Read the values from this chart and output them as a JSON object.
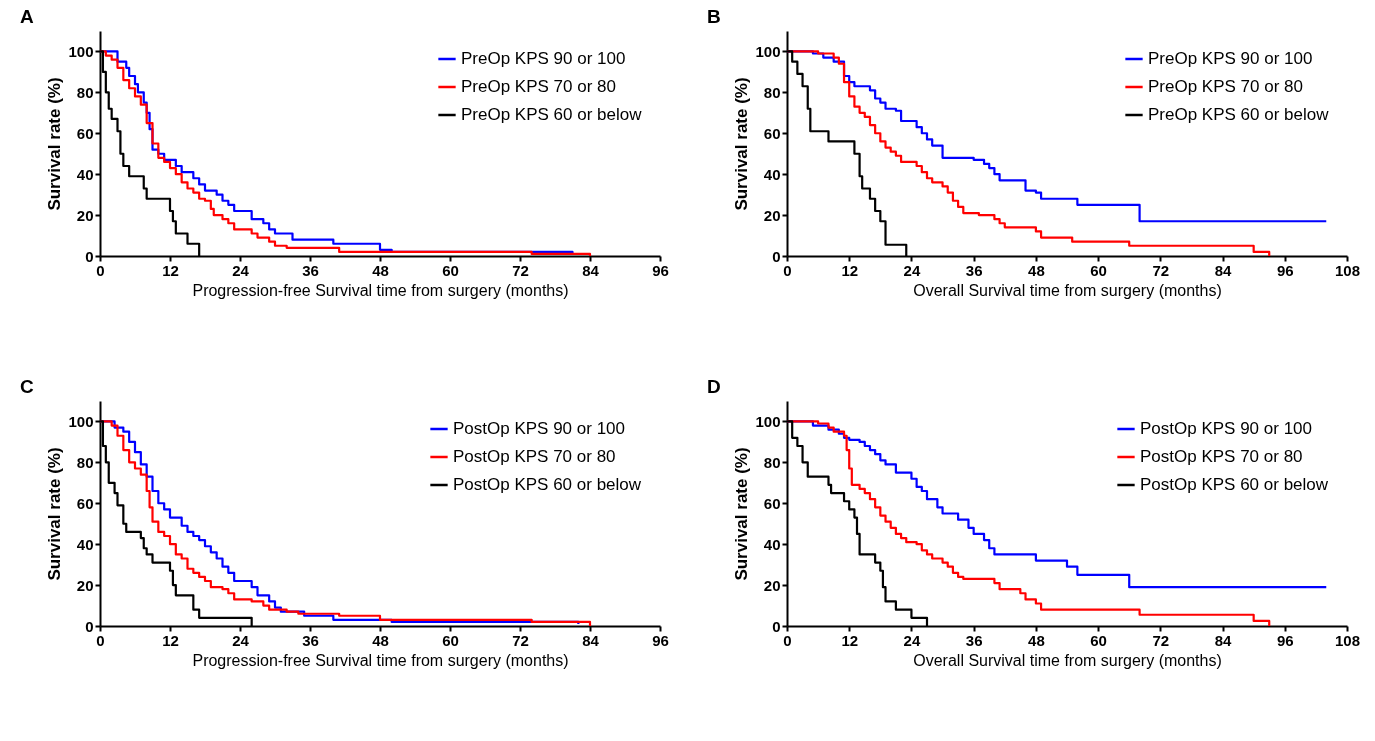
{
  "chart_data": [
    {
      "type": "step",
      "title": "A",
      "xlabel": "Progression-free Survival time from surgery (months)",
      "ylabel": "Survival rate (%)",
      "xlim": [
        0,
        96
      ],
      "xticks": [
        0,
        12,
        24,
        36,
        48,
        60,
        72,
        84,
        96
      ],
      "ylim": [
        0,
        110
      ],
      "yticks": [
        0,
        20,
        40,
        60,
        80,
        100
      ],
      "grid": false,
      "legend": "top right",
      "series": [
        {
          "name": "PreOp KPS 90 or 100",
          "color": "#0000ff",
          "x": [
            0,
            3,
            4.5,
            5,
            6,
            6.5,
            7.5,
            8,
            8.5,
            9,
            10,
            11,
            13,
            14,
            16,
            17,
            18,
            20,
            21,
            22,
            23,
            26,
            28,
            29,
            30,
            33,
            40,
            48,
            50,
            81
          ],
          "values": [
            100,
            95,
            92,
            88,
            84,
            80,
            75,
            70,
            62,
            52,
            50,
            47,
            44,
            41,
            38,
            35,
            32,
            30,
            27,
            25,
            22,
            18,
            16,
            13,
            11,
            8,
            6,
            3,
            2,
            1
          ]
        },
        {
          "name": "PreOp KPS 70 or 80",
          "color": "#ff0000",
          "x": [
            0,
            1,
            2,
            3,
            4,
            5,
            6,
            7,
            8,
            9,
            10,
            11,
            12,
            13,
            14,
            15,
            16,
            17,
            18,
            19,
            19.5,
            21,
            22,
            23,
            26,
            27,
            29,
            30,
            32,
            41,
            74,
            84
          ],
          "values": [
            100,
            98,
            96,
            92,
            86,
            82,
            78,
            74,
            65,
            55,
            48,
            46,
            43,
            40,
            36,
            33,
            31,
            28,
            27,
            23,
            20,
            18,
            16,
            13,
            11,
            9,
            7,
            5,
            4,
            2,
            1,
            0
          ]
        },
        {
          "name": "PreOp KPS 60 or below",
          "color": "#000000",
          "x": [
            0,
            0.5,
            1,
            1.5,
            2,
            3,
            3.5,
            4,
            5,
            7.5,
            8,
            12,
            12.5,
            13,
            15,
            17
          ],
          "values": [
            100,
            90,
            80,
            72,
            67,
            61,
            50,
            44,
            39,
            33,
            28,
            22,
            17,
            11,
            6,
            0
          ]
        }
      ]
    },
    {
      "type": "step",
      "title": "B",
      "xlabel": "Overall Survival time from surgery (months)",
      "ylabel": "Survival rate (%)",
      "xlim": [
        0,
        108
      ],
      "xticks": [
        0,
        12,
        24,
        36,
        48,
        60,
        72,
        84,
        96,
        108
      ],
      "ylim": [
        0,
        110
      ],
      "yticks": [
        0,
        20,
        40,
        60,
        80,
        100
      ],
      "grid": false,
      "legend": "top right",
      "series": [
        {
          "name": "PreOp KPS 90 or 100",
          "color": "#0000ff",
          "x": [
            0,
            5,
            7,
            9,
            11,
            12,
            13,
            16,
            17,
            18,
            19,
            21,
            22,
            25,
            26,
            27,
            28,
            30,
            36,
            38,
            39,
            40,
            41,
            46,
            48,
            49,
            56,
            68,
            104
          ],
          "values": [
            100,
            99,
            97,
            95,
            88,
            85,
            83,
            81,
            77,
            75,
            72,
            71,
            66,
            63,
            60,
            57,
            54,
            48,
            47,
            45,
            43,
            40,
            37,
            32,
            31,
            28,
            25,
            17,
            17
          ]
        },
        {
          "name": "PreOp KPS 70 or 80",
          "color": "#ff0000",
          "x": [
            0,
            6,
            9,
            10,
            11,
            12,
            13,
            14,
            15,
            16,
            17,
            18,
            19,
            20,
            21,
            22,
            25,
            26,
            27,
            28,
            30,
            31,
            32,
            33,
            34,
            37,
            40,
            41,
            42,
            48,
            49,
            55,
            66,
            90,
            93
          ],
          "values": [
            100,
            99,
            97,
            94,
            85,
            78,
            73,
            70,
            68,
            64,
            60,
            56,
            53,
            51,
            49,
            46,
            44,
            41,
            38,
            36,
            34,
            31,
            27,
            24,
            21,
            20,
            18,
            16,
            14,
            12,
            9,
            7,
            5,
            2,
            0
          ]
        },
        {
          "name": "PreOp KPS 60 or below",
          "color": "#000000",
          "x": [
            0,
            1,
            2,
            3,
            4,
            4.5,
            8,
            13,
            14,
            14.5,
            16,
            17,
            18,
            19,
            23
          ],
          "values": [
            100,
            95,
            89,
            83,
            72,
            61,
            56,
            50,
            39,
            33,
            28,
            22,
            17,
            5.5,
            0
          ]
        }
      ]
    },
    {
      "type": "step",
      "title": "C",
      "xlabel": "Progression-free Survival time from surgery (months)",
      "ylabel": "Survival rate (%)",
      "xlim": [
        0,
        96
      ],
      "xticks": [
        0,
        12,
        24,
        36,
        48,
        60,
        72,
        84,
        96
      ],
      "ylim": [
        0,
        110
      ],
      "yticks": [
        0,
        20,
        40,
        60,
        80,
        100
      ],
      "grid": false,
      "legend": "top right",
      "series": [
        {
          "name": "PostOp KPS 90 or 100",
          "color": "#0000ff",
          "x": [
            0,
            2.5,
            4,
            5,
            6,
            7,
            8,
            9,
            10,
            11,
            12,
            14,
            15,
            16,
            17,
            18,
            19,
            20,
            21,
            22,
            23,
            26,
            27,
            29,
            30,
            31,
            35,
            40,
            50,
            82
          ],
          "values": [
            100,
            97,
            95,
            90,
            85,
            79,
            73,
            66,
            60,
            57,
            53,
            49,
            46,
            44,
            42,
            39,
            36,
            33,
            29,
            26,
            22,
            19,
            15,
            12,
            9,
            7,
            5,
            3,
            2,
            1
          ]
        },
        {
          "name": "PostOp KPS 70 or 80",
          "color": "#ff0000",
          "x": [
            0,
            2,
            3,
            4,
            5,
            6,
            7,
            8,
            8.5,
            9,
            10,
            11,
            12,
            13,
            14,
            15,
            16,
            17,
            18,
            19,
            21,
            22,
            23,
            26,
            28,
            29,
            32,
            34,
            41,
            48,
            74,
            84
          ],
          "values": [
            100,
            98,
            93,
            86,
            80,
            77,
            74,
            66,
            58,
            51,
            46,
            44,
            40,
            35,
            33,
            28,
            26,
            24,
            22,
            19,
            18,
            16,
            13,
            12,
            10,
            8,
            7,
            6,
            5,
            3,
            2,
            0
          ]
        },
        {
          "name": "PostOp KPS 60 or below",
          "color": "#000000",
          "x": [
            0,
            0.5,
            1,
            1.5,
            2.5,
            3,
            4,
            4.5,
            7,
            7.5,
            8,
            9,
            12,
            12.5,
            13,
            16,
            17,
            26
          ],
          "values": [
            100,
            88,
            80,
            70,
            65,
            59,
            50,
            46,
            43,
            38,
            35,
            31,
            27,
            20,
            15,
            8,
            4,
            0
          ]
        }
      ]
    },
    {
      "type": "step",
      "title": "D",
      "xlabel": "Overall Survival time from surgery (months)",
      "ylabel": "Survival rate (%)",
      "xlim": [
        0,
        108
      ],
      "xticks": [
        0,
        12,
        24,
        36,
        48,
        60,
        72,
        84,
        96,
        108
      ],
      "ylim": [
        0,
        110
      ],
      "yticks": [
        0,
        20,
        40,
        60,
        80,
        100
      ],
      "grid": false,
      "legend": "top right",
      "series": [
        {
          "name": "PostOp KPS 90 or 100",
          "color": "#0000ff",
          "x": [
            0,
            5,
            8,
            10,
            11,
            12,
            14,
            15,
            16,
            17,
            18,
            19,
            21,
            24,
            25,
            26,
            27,
            29,
            30,
            33,
            35,
            36,
            38,
            39,
            40,
            48,
            54,
            56,
            66,
            104
          ],
          "values": [
            100,
            98,
            96,
            94,
            92,
            91,
            90,
            88,
            86,
            84,
            81,
            79,
            75,
            72,
            68,
            66,
            62,
            58,
            55,
            52,
            48,
            45,
            42,
            38,
            35,
            32,
            29,
            25,
            19,
            19
          ]
        },
        {
          "name": "PostOp KPS 70 or 80",
          "color": "#ff0000",
          "x": [
            0,
            6,
            8,
            9,
            11,
            11.5,
            12,
            12.5,
            14,
            15,
            16,
            17,
            18,
            19,
            20,
            21,
            22,
            23,
            25,
            26,
            27,
            28,
            30,
            31,
            32,
            33,
            34,
            40,
            41,
            45,
            46,
            48,
            49,
            68,
            90,
            93
          ],
          "values": [
            100,
            99,
            97,
            95,
            93,
            86,
            77,
            69,
            67,
            65,
            62,
            58,
            54,
            51,
            48,
            45,
            43,
            41,
            40,
            37,
            35,
            33,
            31,
            29,
            26,
            24,
            23,
            21,
            18,
            16,
            13,
            11,
            8,
            5.5,
            2.5,
            0
          ]
        },
        {
          "name": "PostOp KPS 60 or below",
          "color": "#000000",
          "x": [
            0,
            1,
            2,
            3,
            4,
            8,
            8.5,
            11,
            12,
            13,
            13.5,
            14,
            17,
            18,
            18.5,
            19,
            21,
            24,
            27
          ],
          "values": [
            100,
            92,
            88,
            80,
            73,
            69,
            65,
            61,
            57,
            53,
            45,
            35,
            31,
            27,
            19,
            12,
            8,
            4,
            0
          ]
        }
      ]
    }
  ]
}
